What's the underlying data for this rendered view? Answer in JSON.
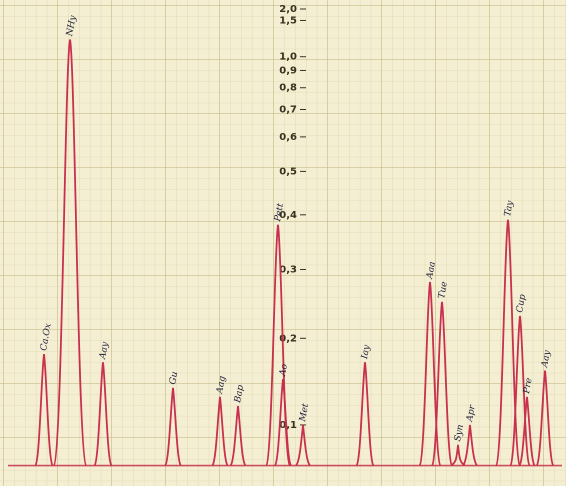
{
  "chart_data": {
    "type": "chromatogram",
    "yscale": "absorbance",
    "ylim": [
      0,
      2.0
    ],
    "yticks": [
      {
        "value": 0.1,
        "label": "0,1"
      },
      {
        "value": 0.2,
        "label": "0,2"
      },
      {
        "value": 0.3,
        "label": "0,3"
      },
      {
        "value": 0.4,
        "label": "0,4"
      },
      {
        "value": 0.5,
        "label": "0,5"
      },
      {
        "value": 0.6,
        "label": "0,6"
      },
      {
        "value": 0.7,
        "label": "0,7"
      },
      {
        "value": 0.8,
        "label": "0,8"
      },
      {
        "value": 0.9,
        "label": "0,9"
      },
      {
        "value": 1.0,
        "label": "1,0"
      },
      {
        "value": 1.5,
        "label": "1,5"
      },
      {
        "value": 2.0,
        "label": "2,0"
      }
    ],
    "xlim": [
      0,
      56.6
    ],
    "color": "#c8304e",
    "baseline": 0.06,
    "labels": [
      "Ca.Ox",
      "NHy",
      "Aay",
      "Gu",
      "Aag",
      "Bap",
      "Pett",
      "Ao",
      "Met",
      "Iay",
      "Aaa",
      "Tue",
      "Syn",
      "Apr",
      "Tay",
      "Cup",
      "Pre",
      "Aay"
    ],
    "x": [
      4.4,
      7.0,
      10.3,
      17.3,
      22.0,
      23.8,
      27.8,
      28.3,
      30.3,
      36.5,
      43.0,
      44.2,
      45.8,
      47.0,
      50.8,
      52.0,
      52.7,
      54.5
    ],
    "values": [
      0.18,
      1.17,
      0.17,
      0.14,
      0.13,
      0.12,
      0.38,
      0.15,
      0.1,
      0.17,
      0.28,
      0.25,
      0.08,
      0.1,
      0.39,
      0.23,
      0.13,
      0.16
    ]
  }
}
